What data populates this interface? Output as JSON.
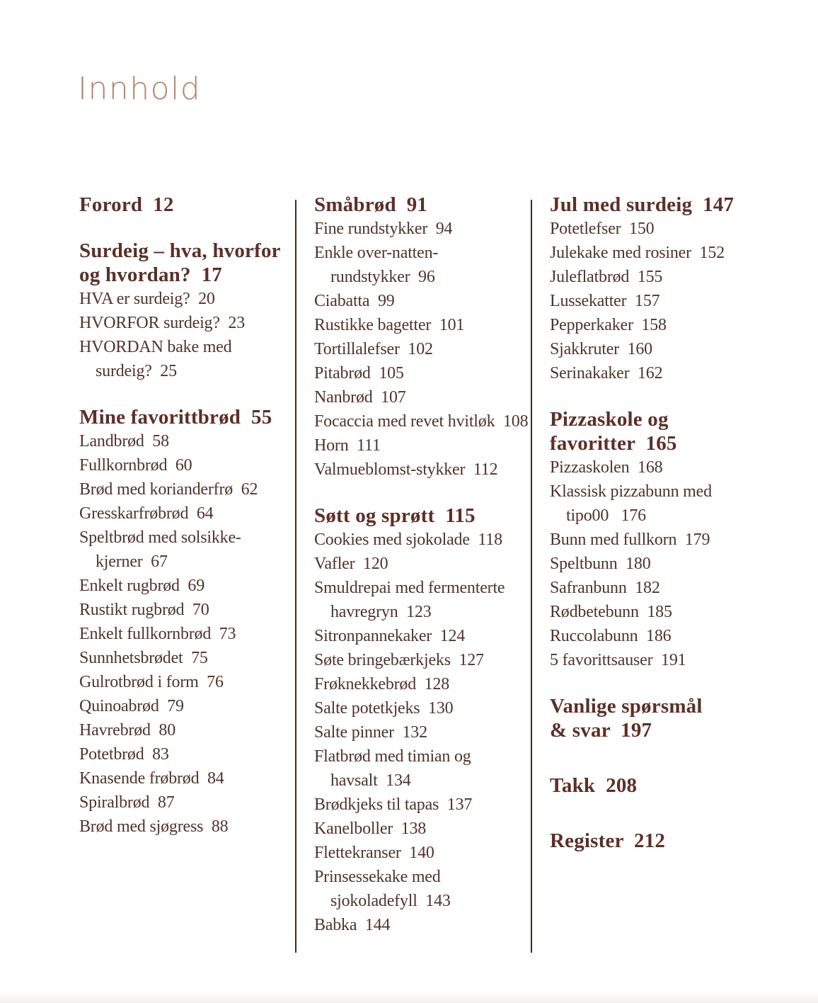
{
  "title": "Innhold",
  "colors": {
    "title": "#b5846a",
    "heading": "#5d2f26",
    "body": "#503428",
    "divider": "#3d2b22"
  },
  "columns": [
    {
      "name": "toc-column-1",
      "blocks": [
        {
          "type": "heading",
          "text": "Forord  12"
        },
        {
          "type": "heading",
          "text": "Surdeig – hva, hvorfor\nog hvordan?  17"
        },
        {
          "type": "item",
          "text": "HVA er surdeig?  20"
        },
        {
          "type": "item",
          "text": "HVORFOR surdeig?  23"
        },
        {
          "type": "item",
          "text": "HVORDAN bake med\nsurdeig?  25"
        },
        {
          "type": "heading",
          "text": "Mine favorittbrød  55"
        },
        {
          "type": "item",
          "text": "Landbrød  58"
        },
        {
          "type": "item",
          "text": "Fullkornbrød  60"
        },
        {
          "type": "item",
          "text": "Brød med korianderfrø  62"
        },
        {
          "type": "item",
          "text": "Gresskarfrøbrød  64"
        },
        {
          "type": "item",
          "text": "Speltbrød med solsikke-\nkjerner  67"
        },
        {
          "type": "item",
          "text": "Enkelt rugbrød  69"
        },
        {
          "type": "item",
          "text": "Rustikt rugbrød  70"
        },
        {
          "type": "item",
          "text": "Enkelt fullkornbrød  73"
        },
        {
          "type": "item",
          "text": "Sunnhetsbrødet  75"
        },
        {
          "type": "item",
          "text": "Gulrotbrød i form  76"
        },
        {
          "type": "item",
          "text": "Quinoabrød  79"
        },
        {
          "type": "item",
          "text": "Havrebrød  80"
        },
        {
          "type": "item",
          "text": "Potetbrød  83"
        },
        {
          "type": "item",
          "text": "Knasende frøbrød  84"
        },
        {
          "type": "item",
          "text": "Spiralbrød  87"
        },
        {
          "type": "item",
          "text": "Brød med sjøgress  88"
        }
      ]
    },
    {
      "name": "toc-column-2",
      "blocks": [
        {
          "type": "heading",
          "text": "Småbrød  91"
        },
        {
          "type": "item",
          "text": "Fine rundstykker  94"
        },
        {
          "type": "item",
          "text": "Enkle over-natten-\nrundstykker  96"
        },
        {
          "type": "item",
          "text": "Ciabatta  99"
        },
        {
          "type": "item",
          "text": "Rustikke bagetter  101"
        },
        {
          "type": "item",
          "text": "Tortillalefser  102"
        },
        {
          "type": "item",
          "text": "Pitabrød  105"
        },
        {
          "type": "item",
          "text": "Nanbrød  107"
        },
        {
          "type": "item",
          "text": "Focaccia med revet hvitløk  108"
        },
        {
          "type": "item",
          "text": "Horn  111"
        },
        {
          "type": "item",
          "text": "Valmueblomst-stykker  112"
        },
        {
          "type": "heading",
          "text": "Søtt og sprøtt  115"
        },
        {
          "type": "item",
          "text": "Cookies med sjokolade  118"
        },
        {
          "type": "item",
          "text": "Vafler  120"
        },
        {
          "type": "item",
          "text": "Smuldrepai med fermenterte\nhavregryn  123"
        },
        {
          "type": "item",
          "text": "Sitronpannekaker  124"
        },
        {
          "type": "item",
          "text": "Søte bringebærkjeks  127"
        },
        {
          "type": "item",
          "text": "Frøknekkebrød  128"
        },
        {
          "type": "item",
          "text": "Salte potetkjeks  130"
        },
        {
          "type": "item",
          "text": "Salte pinner  132"
        },
        {
          "type": "item",
          "text": "Flatbrød med timian og\nhavsalt  134"
        },
        {
          "type": "item",
          "text": "Brødkjeks til tapas  137"
        },
        {
          "type": "item",
          "text": "Kanelboller  138"
        },
        {
          "type": "item",
          "text": "Flettekranser  140"
        },
        {
          "type": "item",
          "text": "Prinsessekake med\nsjokoladefyll  143"
        },
        {
          "type": "item",
          "text": "Babka  144"
        }
      ]
    },
    {
      "name": "toc-column-3",
      "blocks": [
        {
          "type": "heading",
          "text": "Jul med surdeig  147"
        },
        {
          "type": "item",
          "text": "Potetlefser  150"
        },
        {
          "type": "item",
          "text": "Julekake med rosiner  152"
        },
        {
          "type": "item",
          "text": "Juleflatbrød  155"
        },
        {
          "type": "item",
          "text": "Lussekatter  157"
        },
        {
          "type": "item",
          "text": "Pepperkaker  158"
        },
        {
          "type": "item",
          "text": "Sjakkruter  160"
        },
        {
          "type": "item",
          "text": "Serinakaker  162"
        },
        {
          "type": "heading",
          "text": "Pizzaskole og\nfavoritter  165"
        },
        {
          "type": "item",
          "text": "Pizzaskolen  168"
        },
        {
          "type": "item",
          "text": "Klassisk pizzabunn med\ntipo00   176"
        },
        {
          "type": "item",
          "text": "Bunn med fullkorn  179"
        },
        {
          "type": "item",
          "text": "Speltbunn  180"
        },
        {
          "type": "item",
          "text": "Safranbunn  182"
        },
        {
          "type": "item",
          "text": "Rødbetebunn  185"
        },
        {
          "type": "item",
          "text": "Ruccolabunn  186"
        },
        {
          "type": "item",
          "text": "5 favorittsauser  191"
        },
        {
          "type": "heading",
          "text": "Vanlige spørsmål\n& svar  197"
        },
        {
          "type": "heading",
          "text": "Takk  208",
          "gap": "large"
        },
        {
          "type": "heading",
          "text": "Register  212",
          "gap": "large"
        }
      ]
    }
  ]
}
